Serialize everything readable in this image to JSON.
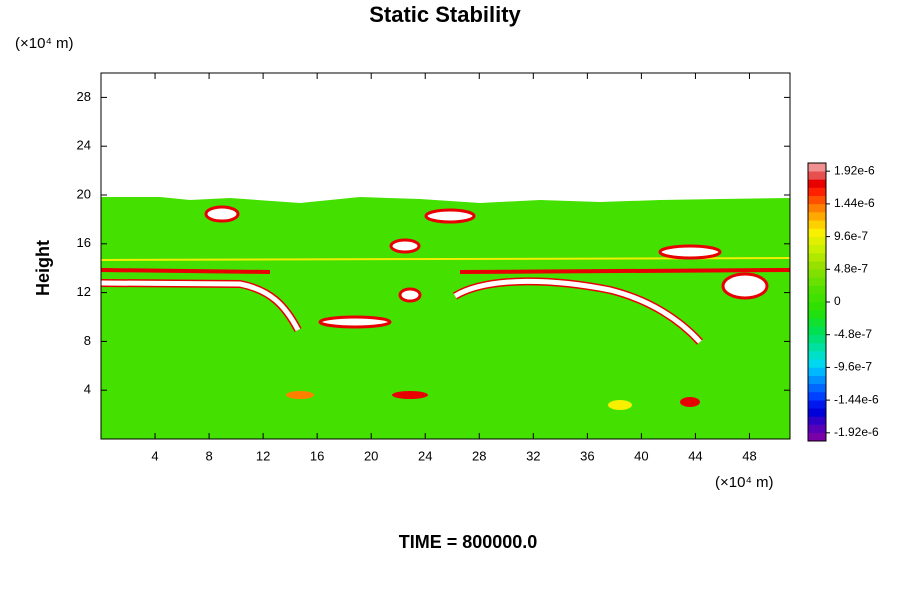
{
  "chart_data": {
    "type": "contour",
    "title": "Static Stability",
    "x_unit_label": "(×10⁴ m)",
    "y_unit_label": "(×10⁴ m)",
    "ylabel": "Height",
    "xlim": [
      0,
      51
    ],
    "xticks": [
      4,
      8,
      12,
      16,
      20,
      24,
      28,
      32,
      36,
      40,
      44,
      48
    ],
    "ylim": [
      0,
      30
    ],
    "yticks": [
      4,
      8,
      12,
      16,
      20,
      24,
      28
    ],
    "colorbar": {
      "lim": [
        -2.04e-06,
        2.04e-06
      ],
      "ticks": [
        {
          "value": 1.92e-06,
          "label": "1.92e-6"
        },
        {
          "value": 1.44e-06,
          "label": "1.44e-6"
        },
        {
          "value": 9.6e-07,
          "label": "9.6e-7"
        },
        {
          "value": 4.8e-07,
          "label": "4.8e-7"
        },
        0,
        {
          "value": -4.8e-07,
          "label": "-4.8e-7"
        },
        {
          "value": -9.6e-07,
          "label": "-9.6e-7"
        },
        {
          "value": -1.44e-06,
          "label": "-1.44e-6"
        },
        {
          "value": -1.92e-06,
          "label": "-1.92e-6"
        }
      ],
      "colors": [
        "#7a00a8",
        "#5800b8",
        "#3000c8",
        "#0000d8",
        "#0018ee",
        "#0040ff",
        "#0068ff",
        "#0090ff",
        "#00b8ff",
        "#00d8f0",
        "#00e0c8",
        "#00e0a0",
        "#00e078",
        "#00e050",
        "#10e030",
        "#20e010",
        "#30e000",
        "#40e000",
        "#50e000",
        "#68e000",
        "#80e000",
        "#98e000",
        "#b0e800",
        "#c8f000",
        "#e0f000",
        "#f8f000",
        "#ffd000",
        "#ffa800",
        "#ff8000",
        "#ff5000",
        "#ff2000",
        "#e80000",
        "#e85050",
        "#f09090"
      ]
    },
    "time_label": "TIME = 800000.0"
  }
}
